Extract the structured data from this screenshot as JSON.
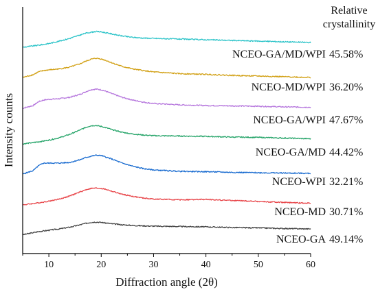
{
  "chart_data": {
    "type": "line",
    "xlabel": "Diffraction angle (2θ)",
    "ylabel": "Intensity counts",
    "xlim": [
      5,
      60
    ],
    "x_ticks": [
      10,
      20,
      30,
      40,
      50,
      60
    ],
    "y_ticks_shown": false,
    "grid": false,
    "annotation_header": "Relative crystallinity",
    "annotation_header_lines": [
      "Relative",
      "crystallinity"
    ],
    "series": [
      {
        "name": "NCEO-GA",
        "color": "#444444",
        "relative_crystallinity": "49.14%",
        "x": [
          5,
          8,
          10,
          12,
          14,
          16,
          17,
          18,
          19,
          20,
          21,
          22,
          24,
          26,
          28,
          30,
          35,
          40,
          45,
          50,
          55,
          60
        ],
        "y": [
          1.5,
          6,
          8,
          10,
          12.5,
          16,
          18,
          19.5,
          20,
          19.5,
          18.5,
          17.5,
          16,
          15,
          14.5,
          14,
          13.5,
          13,
          12,
          11.5,
          10.5,
          10
        ]
      },
      {
        "name": "NCEO-MD",
        "color": "#e8474b",
        "relative_crystallinity": "30.71%",
        "x": [
          5,
          8,
          10,
          12,
          14,
          16,
          17,
          18,
          19,
          20,
          21,
          22,
          24,
          26,
          28,
          30,
          35,
          40,
          45,
          50,
          55,
          60
        ],
        "y": [
          1,
          4,
          6.5,
          9.5,
          14,
          20,
          23,
          25,
          25.5,
          25,
          23.5,
          21,
          16.5,
          13.5,
          11,
          9.5,
          8.5,
          9,
          7.5,
          6,
          4.5,
          3.5
        ]
      },
      {
        "name": "NCEO-WPI",
        "color": "#1a6cd0",
        "relative_crystallinity": "32.21%",
        "x": [
          5,
          7,
          8,
          9,
          10,
          12,
          14,
          16,
          17,
          18,
          19,
          20,
          21,
          22,
          24,
          26,
          28,
          30,
          35,
          40,
          45,
          50,
          55,
          60
        ],
        "y": [
          4,
          9,
          16,
          20,
          20,
          20,
          21,
          25,
          28,
          30,
          31.5,
          31,
          28.5,
          26,
          20,
          15.5,
          12,
          10,
          8,
          7.5,
          6.5,
          6,
          5.5,
          5
        ]
      },
      {
        "name": "NCEO-GA/MD",
        "color": "#2aa66c",
        "relative_crystallinity": "44.42%",
        "x": [
          5,
          8,
          10,
          12,
          14,
          16,
          17,
          18,
          19,
          20,
          21,
          22,
          24,
          26,
          28,
          30,
          35,
          40,
          45,
          50,
          55,
          60
        ],
        "y": [
          1,
          4,
          6.5,
          10,
          15,
          21.5,
          25,
          27.5,
          28,
          26.5,
          24.5,
          22,
          18,
          15.5,
          14,
          13,
          12.5,
          12,
          11,
          10.5,
          9.5,
          8.5
        ]
      },
      {
        "name": "NCEO-GA/WPI",
        "color": "#b677dd",
        "relative_crystallinity": "47.67%",
        "x": [
          5,
          7,
          8,
          9,
          10,
          12,
          14,
          16,
          17,
          18,
          19,
          20,
          21,
          22,
          24,
          26,
          28,
          30,
          35,
          40,
          45,
          50,
          55,
          60
        ],
        "y": [
          4,
          8,
          13.5,
          16,
          17,
          18,
          20,
          24.5,
          28,
          31,
          32,
          31,
          28.5,
          25.5,
          20,
          16,
          13,
          11,
          9,
          8,
          7.5,
          7,
          6,
          5.5
        ]
      },
      {
        "name": "NCEO-MD/WPI",
        "color": "#d19f12",
        "relative_crystallinity": "36.20%",
        "x": [
          5,
          7,
          8,
          9,
          10,
          12,
          14,
          16,
          17,
          18,
          19,
          20,
          21,
          22,
          24,
          26,
          28,
          30,
          35,
          40,
          45,
          50,
          55,
          60
        ],
        "y": [
          3,
          7,
          11,
          13,
          14,
          15.5,
          18,
          23,
          26.5,
          29.5,
          31,
          30,
          27.5,
          24.5,
          19,
          15.5,
          13,
          11,
          8.5,
          7.5,
          6,
          5,
          4,
          3
        ]
      },
      {
        "name": "NCEO-GA/MD/WPI",
        "color": "#2ec4c9",
        "relative_crystallinity": "45.58%",
        "x": [
          5,
          8,
          10,
          12,
          14,
          16,
          17,
          18,
          19,
          20,
          21,
          22,
          24,
          26,
          28,
          30,
          35,
          40,
          45,
          50,
          55,
          60
        ],
        "y": [
          1,
          4,
          6.5,
          10,
          14,
          19,
          21.5,
          23,
          24,
          23.5,
          22,
          20.5,
          17.5,
          15.5,
          14.5,
          14,
          13,
          12,
          11,
          10,
          9,
          8
        ]
      }
    ]
  }
}
